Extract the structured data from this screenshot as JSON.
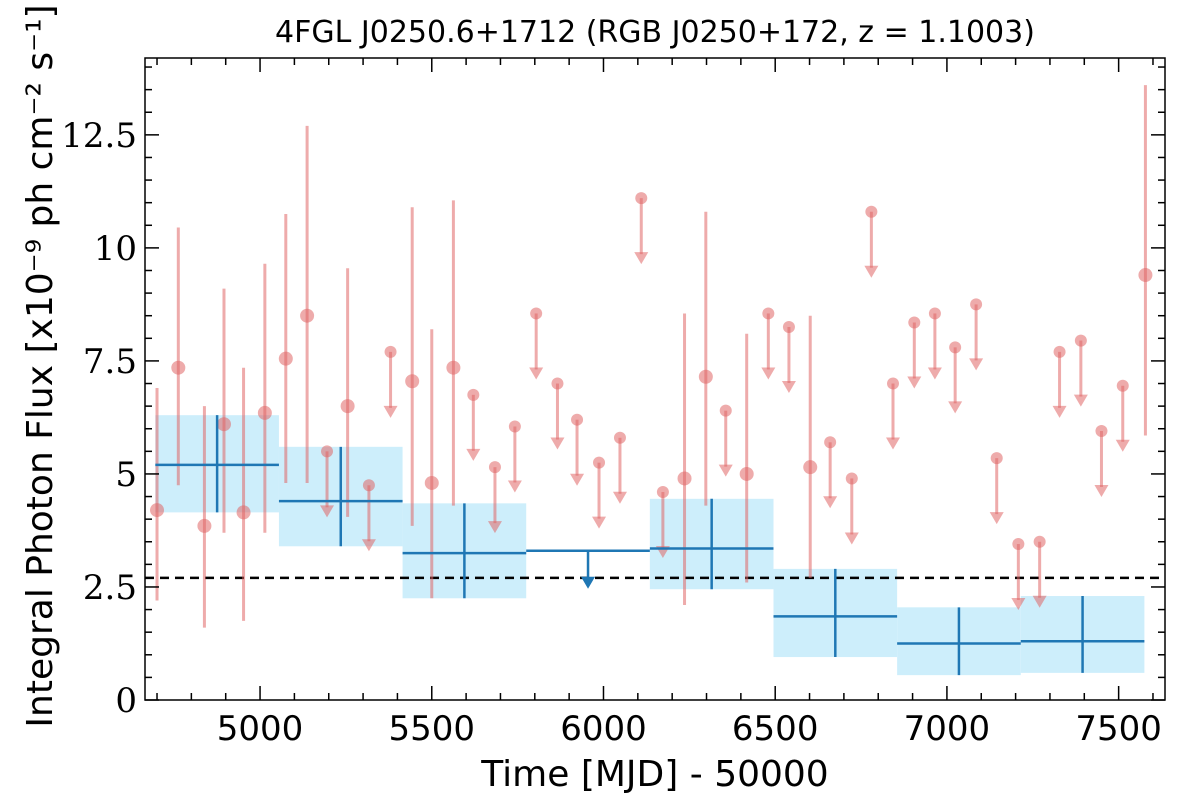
{
  "chart_data": {
    "type": "scatter",
    "title": "4FGL J0250.6+1712 (RGB J0250+172, z = 1.1003)",
    "xlabel": "Time [MJD] - 50000",
    "ylabel": "Integral Photon Flux [x10⁻⁹ ph cm⁻² s⁻¹]",
    "xlim": [
      4665,
      7635
    ],
    "ylim": [
      0,
      14.2
    ],
    "x_ticks": [
      {
        "value": 5000,
        "label": "5000"
      },
      {
        "value": 5500,
        "label": "5500"
      },
      {
        "value": 6000,
        "label": "6000"
      },
      {
        "value": 6500,
        "label": "6500"
      },
      {
        "value": 7000,
        "label": "7000"
      },
      {
        "value": 7500,
        "label": "7500"
      }
    ],
    "y_ticks": [
      {
        "value": 0,
        "label": "0"
      },
      {
        "value": 2.5,
        "label": "2.5"
      },
      {
        "value": 5,
        "label": "5"
      },
      {
        "value": 7.5,
        "label": "7.5"
      },
      {
        "value": 10,
        "label": "10"
      },
      {
        "value": 12.5,
        "label": "12.5"
      }
    ],
    "grid": false,
    "reference_line": {
      "y": 2.7,
      "style": "dashed",
      "color": "#000000"
    },
    "colors": {
      "short_bins": "#e06666",
      "long_bins": "#1f77b4",
      "long_bin_band": "#cdeefb"
    },
    "short_bin_points": [
      {
        "x": 4700,
        "y": 4.2,
        "low": 2.2,
        "high": 6.9
      },
      {
        "x": 4762,
        "y": 7.35,
        "low": 4.75,
        "high": 10.45
      },
      {
        "x": 4838,
        "y": 3.85,
        "low": 1.6,
        "high": 6.5
      },
      {
        "x": 4895,
        "y": 6.1,
        "low": 3.7,
        "high": 9.1
      },
      {
        "x": 4952,
        "y": 4.15,
        "low": 1.75,
        "high": 7.35
      },
      {
        "x": 5014,
        "y": 6.35,
        "low": 3.7,
        "high": 9.65
      },
      {
        "x": 5075,
        "y": 7.55,
        "low": 4.8,
        "high": 10.75
      },
      {
        "x": 5137,
        "y": 8.5,
        "low": 4.8,
        "high": 12.7
      },
      {
        "x": 5255,
        "y": 6.5,
        "low": 4.05,
        "high": 9.55
      },
      {
        "x": 5443,
        "y": 7.05,
        "low": 3.85,
        "high": 10.9
      },
      {
        "x": 5500,
        "y": 4.8,
        "low": 2.25,
        "high": 8.2
      },
      {
        "x": 5563,
        "y": 7.35,
        "low": 4.3,
        "high": 11.05
      },
      {
        "x": 6236,
        "y": 4.9,
        "low": 2.1,
        "high": 8.55
      },
      {
        "x": 6298,
        "y": 7.15,
        "low": 4.3,
        "high": 10.8
      },
      {
        "x": 6417,
        "y": 5.0,
        "low": 2.6,
        "high": 8.1
      },
      {
        "x": 6602,
        "y": 5.15,
        "low": 2.7,
        "high": 8.5
      },
      {
        "x": 7578,
        "y": 9.4,
        "low": 5.85,
        "high": 13.6
      }
    ],
    "short_bin_upper_limits": [
      {
        "x": 5195,
        "y": 5.5
      },
      {
        "x": 5317,
        "y": 4.75
      },
      {
        "x": 5380,
        "y": 7.7
      },
      {
        "x": 5621,
        "y": 6.75
      },
      {
        "x": 5684,
        "y": 5.15
      },
      {
        "x": 5742,
        "y": 6.05
      },
      {
        "x": 5804,
        "y": 8.55
      },
      {
        "x": 5866,
        "y": 7.0
      },
      {
        "x": 5923,
        "y": 6.2
      },
      {
        "x": 5987,
        "y": 5.25
      },
      {
        "x": 6048,
        "y": 5.8
      },
      {
        "x": 6110,
        "y": 11.1
      },
      {
        "x": 6173,
        "y": 4.6
      },
      {
        "x": 6356,
        "y": 6.4
      },
      {
        "x": 6480,
        "y": 8.55
      },
      {
        "x": 6540,
        "y": 8.25
      },
      {
        "x": 6660,
        "y": 5.7
      },
      {
        "x": 6723,
        "y": 4.9
      },
      {
        "x": 6780,
        "y": 10.8
      },
      {
        "x": 6843,
        "y": 7.0
      },
      {
        "x": 6905,
        "y": 8.35
      },
      {
        "x": 6965,
        "y": 8.55
      },
      {
        "x": 7024,
        "y": 7.8
      },
      {
        "x": 7085,
        "y": 8.75
      },
      {
        "x": 7145,
        "y": 5.35
      },
      {
        "x": 7208,
        "y": 3.45
      },
      {
        "x": 7270,
        "y": 3.5
      },
      {
        "x": 7328,
        "y": 7.7
      },
      {
        "x": 7390,
        "y": 7.95
      },
      {
        "x": 7450,
        "y": 5.95
      },
      {
        "x": 7512,
        "y": 6.95
      }
    ],
    "long_bins": [
      {
        "x0": 4695,
        "x1": 5055,
        "x": 4875,
        "y": 5.2,
        "low": 4.15,
        "high": 6.3
      },
      {
        "x0": 5055,
        "x1": 5415,
        "x": 5235,
        "y": 4.4,
        "low": 3.4,
        "high": 5.6
      },
      {
        "x0": 5415,
        "x1": 5775,
        "x": 5595,
        "y": 3.25,
        "low": 2.25,
        "high": 4.35
      },
      {
        "x0": 6135,
        "x1": 6495,
        "x": 6315,
        "y": 3.35,
        "low": 2.45,
        "high": 4.45
      },
      {
        "x0": 6495,
        "x1": 6855,
        "x": 6675,
        "y": 1.85,
        "low": 0.95,
        "high": 2.9
      },
      {
        "x0": 6855,
        "x1": 7215,
        "x": 7035,
        "y": 1.25,
        "low": 0.55,
        "high": 2.05
      },
      {
        "x0": 7215,
        "x1": 7575,
        "x": 7395,
        "y": 1.3,
        "low": 0.6,
        "high": 2.3
      }
    ],
    "long_bin_upper_limits": [
      {
        "x0": 5775,
        "x1": 6135,
        "x": 5955,
        "y": 3.3
      }
    ]
  }
}
